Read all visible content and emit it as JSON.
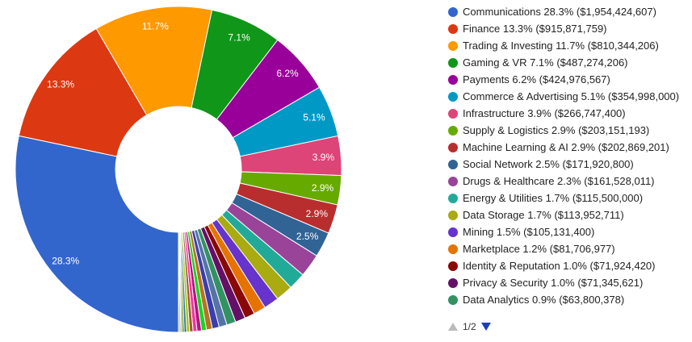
{
  "chart_data": {
    "type": "pie",
    "donut": true,
    "legend_position": "right",
    "slices": [
      {
        "label": "Communications",
        "percent_label": "28.3%",
        "value_label": "($1,954,424,607)",
        "value": 1954424607,
        "color": "#3366cc"
      },
      {
        "label": "Finance",
        "percent_label": "13.3%",
        "value_label": "($915,871,759)",
        "value": 915871759,
        "color": "#dc3912"
      },
      {
        "label": "Trading & Investing",
        "percent_label": "11.7%",
        "value_label": "($810,344,206)",
        "value": 810344206,
        "color": "#ff9900"
      },
      {
        "label": "Gaming & VR",
        "percent_label": "7.1%",
        "value_label": "($487,274,206)",
        "value": 487274206,
        "color": "#109618"
      },
      {
        "label": "Payments",
        "percent_label": "6.2%",
        "value_label": "($424,976,567)",
        "value": 424976567,
        "color": "#990099"
      },
      {
        "label": "Commerce & Advertising",
        "percent_label": "5.1%",
        "value_label": "($354,998,000)",
        "value": 354998000,
        "color": "#0099c6"
      },
      {
        "label": "Infrastructure",
        "percent_label": "3.9%",
        "value_label": "($266,747,400)",
        "value": 266747400,
        "color": "#dd4477"
      },
      {
        "label": "Supply & Logistics",
        "percent_label": "2.9%",
        "value_label": "($203,151,193)",
        "value": 203151193,
        "color": "#66aa00"
      },
      {
        "label": "Machine Learning & AI",
        "percent_label": "2.9%",
        "value_label": "($202,869,201)",
        "value": 202869201,
        "color": "#b82e2e"
      },
      {
        "label": "Social Network",
        "percent_label": "2.5%",
        "value_label": "($171,920,800)",
        "value": 171920800,
        "color": "#316395"
      },
      {
        "label": "Drugs & Healthcare",
        "percent_label": "2.3%",
        "value_label": "($161,528,011)",
        "value": 161528011,
        "color": "#994499"
      },
      {
        "label": "Energy & Utilities",
        "percent_label": "1.7%",
        "value_label": "($115,500,000)",
        "value": 115500000,
        "color": "#22aa99"
      },
      {
        "label": "Data Storage",
        "percent_label": "1.7%",
        "value_label": "($113,952,711)",
        "value": 113952711,
        "color": "#aaaa11"
      },
      {
        "label": "Mining",
        "percent_label": "1.5%",
        "value_label": "($105,131,400)",
        "value": 105131400,
        "color": "#6633cc"
      },
      {
        "label": "Marketplace",
        "percent_label": "1.2%",
        "value_label": "($81,706,977)",
        "value": 81706977,
        "color": "#e67300"
      },
      {
        "label": "Identity & Reputation",
        "percent_label": "1.0%",
        "value_label": "($71,924,420)",
        "value": 71924420,
        "color": "#8b0707"
      },
      {
        "label": "Privacy & Security",
        "percent_label": "1.0%",
        "value_label": "($71,345,621)",
        "value": 71345621,
        "color": "#651067"
      },
      {
        "label": "Data Analytics",
        "percent_label": "0.9%",
        "value_label": "($63,800,378)",
        "value": 63800378,
        "color": "#329262"
      }
    ],
    "other_slices": {
      "note_colors": [
        "#5574a6",
        "#3b3eac",
        "#b77322",
        "#16d620",
        "#b91383",
        "#f4359e",
        "#9c5935",
        "#a9c413",
        "#2a778d",
        "#668d1c",
        "#bea413",
        "#0c5922",
        "#743411"
      ],
      "shares": [
        0.8,
        0.7,
        0.6,
        0.5,
        0.45,
        0.4,
        0.35,
        0.3,
        0.25,
        0.2,
        0.15,
        0.12,
        0.1
      ]
    }
  },
  "pager": {
    "label": "1/2"
  }
}
